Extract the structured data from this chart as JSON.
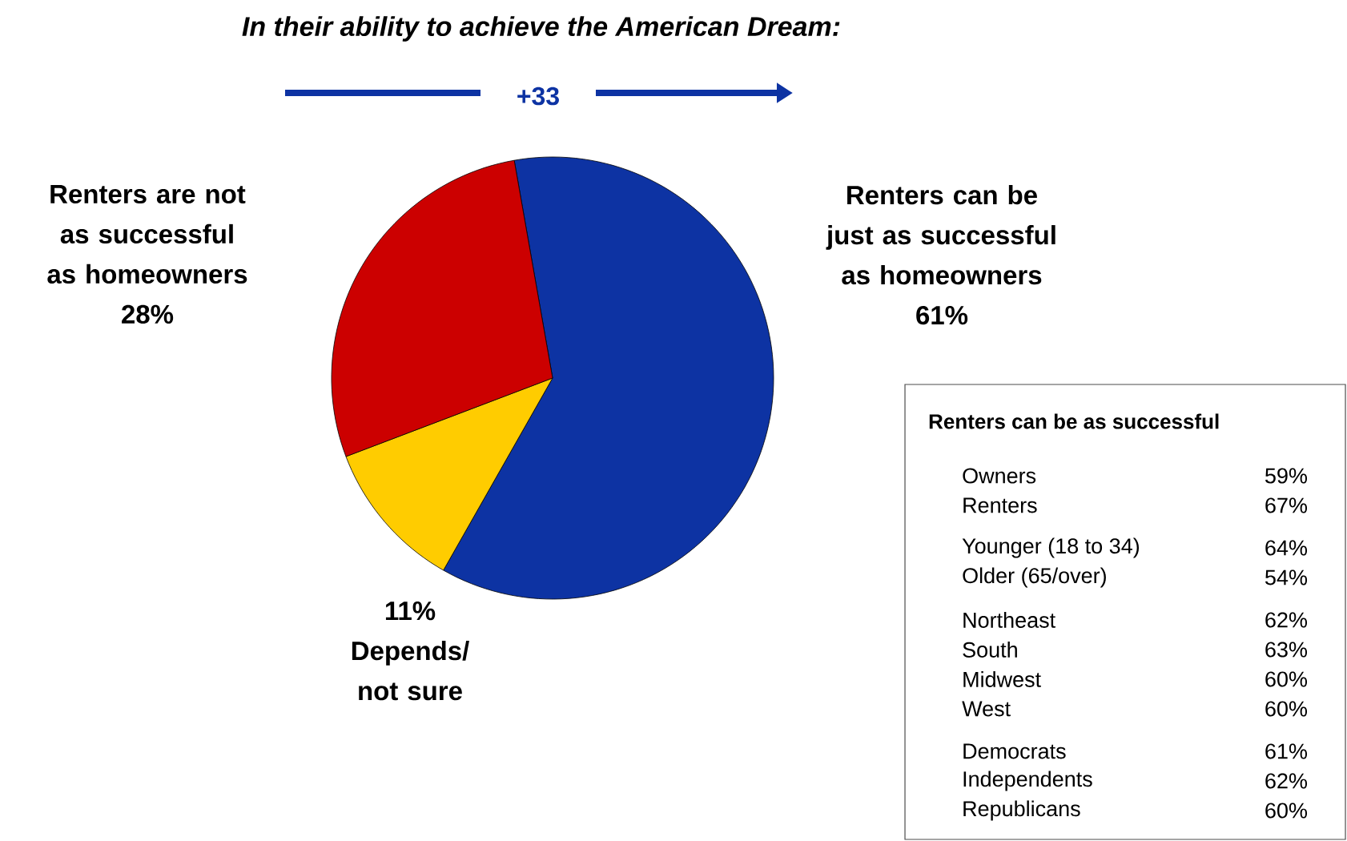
{
  "chart_data": [
    {
      "type": "pie",
      "title": "In their ability to achieve the American Dream:",
      "annotations": [
        "+33"
      ],
      "categories": [
        "Renters can be just as successful as homeowners",
        "Depends/ not sure",
        "Renters are not as successful as homeowners"
      ],
      "values": [
        61,
        11,
        28
      ],
      "colors": [
        "#0d33a3",
        "#ffcc00",
        "#cc0000"
      ],
      "value_labels": [
        "61%",
        "11%",
        "28%"
      ]
    },
    {
      "type": "other",
      "title": "Renters can be as successful",
      "annotations": [
        "Owners",
        "59%",
        "Renters",
        "67%",
        "Younger (18 to 34)",
        "64%",
        "Older (65/over)",
        "54%",
        "Northeast",
        "62%",
        "South",
        "63%",
        "Midwest",
        "60%",
        "West",
        "60%",
        "Democrats",
        "61%",
        "Independents",
        "62%",
        "Republicans",
        "60%"
      ]
    }
  ]
}
